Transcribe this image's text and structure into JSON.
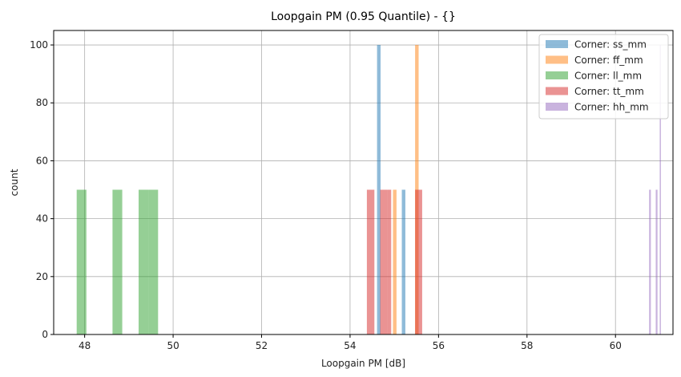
{
  "chart_data": {
    "type": "bar",
    "title": "Loopgain PM (0.95 Quantile) - {}",
    "xlabel": "Loopgain PM [dB]",
    "ylabel": "count",
    "xlim": [
      47.3,
      61.3
    ],
    "ylim": [
      0,
      105
    ],
    "xticks": [
      48,
      50,
      52,
      54,
      56,
      58,
      60
    ],
    "yticks": [
      0,
      20,
      40,
      60,
      80,
      100
    ],
    "grid": true,
    "legend_position": "top-right",
    "bar_alpha": 0.5,
    "series": [
      {
        "name": "Corner: ss_mm",
        "color": "#1f77b4",
        "bins": [
          {
            "x0": 54.61,
            "x1": 54.69,
            "count": 100
          },
          {
            "x0": 55.17,
            "x1": 55.25,
            "count": 50
          }
        ]
      },
      {
        "name": "Corner: ff_mm",
        "color": "#ff7f0e",
        "bins": [
          {
            "x0": 55.47,
            "x1": 55.55,
            "count": 100
          },
          {
            "x0": 54.97,
            "x1": 55.05,
            "count": 50
          }
        ]
      },
      {
        "name": "Corner: ll_mm",
        "color": "#2ca02c",
        "bins": [
          {
            "x0": 47.82,
            "x1": 48.04,
            "count": 50
          },
          {
            "x0": 48.63,
            "x1": 48.85,
            "count": 50
          },
          {
            "x0": 49.22,
            "x1": 49.44,
            "count": 50
          },
          {
            "x0": 49.44,
            "x1": 49.66,
            "count": 50
          }
        ]
      },
      {
        "name": "Corner: tt_mm",
        "color": "#d62728",
        "bins": [
          {
            "x0": 54.38,
            "x1": 54.55,
            "count": 50
          },
          {
            "x0": 54.68,
            "x1": 54.85,
            "count": 50
          },
          {
            "x0": 54.85,
            "x1": 54.93,
            "count": 50
          },
          {
            "x0": 55.47,
            "x1": 55.63,
            "count": 50
          }
        ]
      },
      {
        "name": "Corner: hh_mm",
        "color": "#9467bd",
        "bins": [
          {
            "x0": 60.76,
            "x1": 60.8,
            "count": 50
          },
          {
            "x0": 60.91,
            "x1": 60.95,
            "count": 50
          },
          {
            "x0": 61.0,
            "x1": 61.02,
            "count": 100
          }
        ]
      }
    ]
  }
}
